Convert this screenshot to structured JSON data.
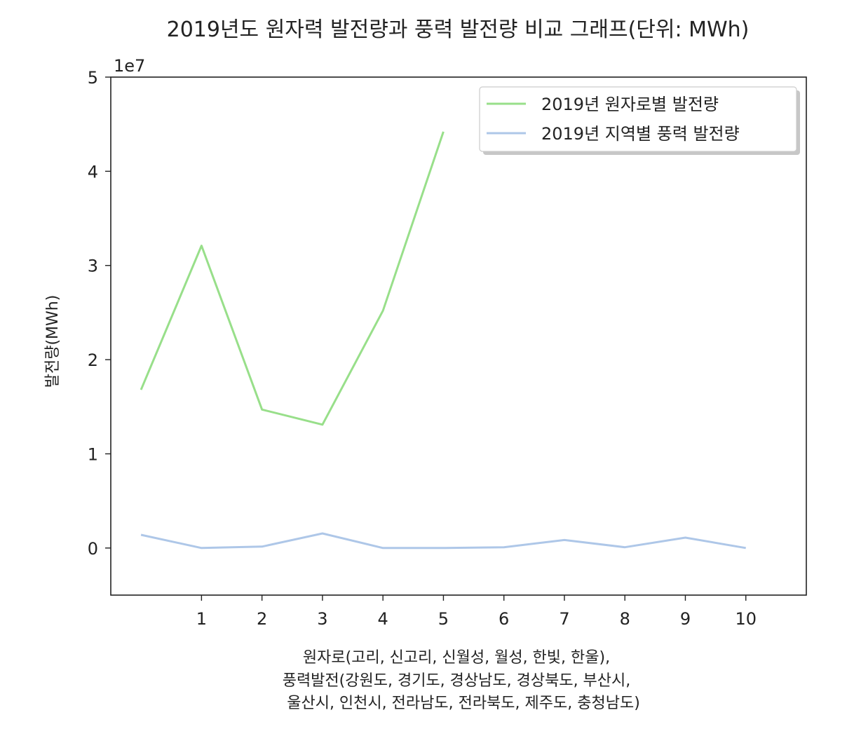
{
  "chart_data": {
    "type": "line",
    "title": "2019년도 원자력 발전량과 풍력 발전량 비교 그래프(단위: MWh)",
    "xlabel_lines": [
      "원자로(고리, 신고리, 신월성, 월성, 한빛, 한울),",
      "풍력발전(강원도, 경기도, 경상남도, 경상북도, 부산시,",
      "울산시, 인천시, 전라남도, 전라북도, 제주도, 충청남도)"
    ],
    "ylabel": "발전량(MWh)",
    "offset_text": "1e7",
    "xlim": [
      -0.5,
      11.0
    ],
    "ylim": [
      -0.5,
      5.0
    ],
    "x_ticks": [
      1,
      2,
      3,
      4,
      5,
      6,
      7,
      8,
      9,
      10
    ],
    "y_ticks": [
      0,
      1,
      2,
      3,
      4,
      5
    ],
    "grid": false,
    "legend_position": "upper right",
    "series": [
      {
        "name": "2019년 원자로별 발전량",
        "color": "#98df8a",
        "x": [
          0,
          1,
          2,
          3,
          4,
          5
        ],
        "values": [
          1.68,
          3.21,
          1.47,
          1.31,
          2.52,
          4.42
        ]
      },
      {
        "name": "2019년 지역별 풍력 발전량",
        "color": "#aec7e8",
        "x": [
          0,
          1,
          2,
          3,
          4,
          5,
          6,
          7,
          8,
          9,
          10
        ],
        "values": [
          0.14,
          0.0,
          0.015,
          0.155,
          0.0,
          0.0,
          0.008,
          0.085,
          0.008,
          0.11,
          0.0
        ]
      }
    ]
  }
}
